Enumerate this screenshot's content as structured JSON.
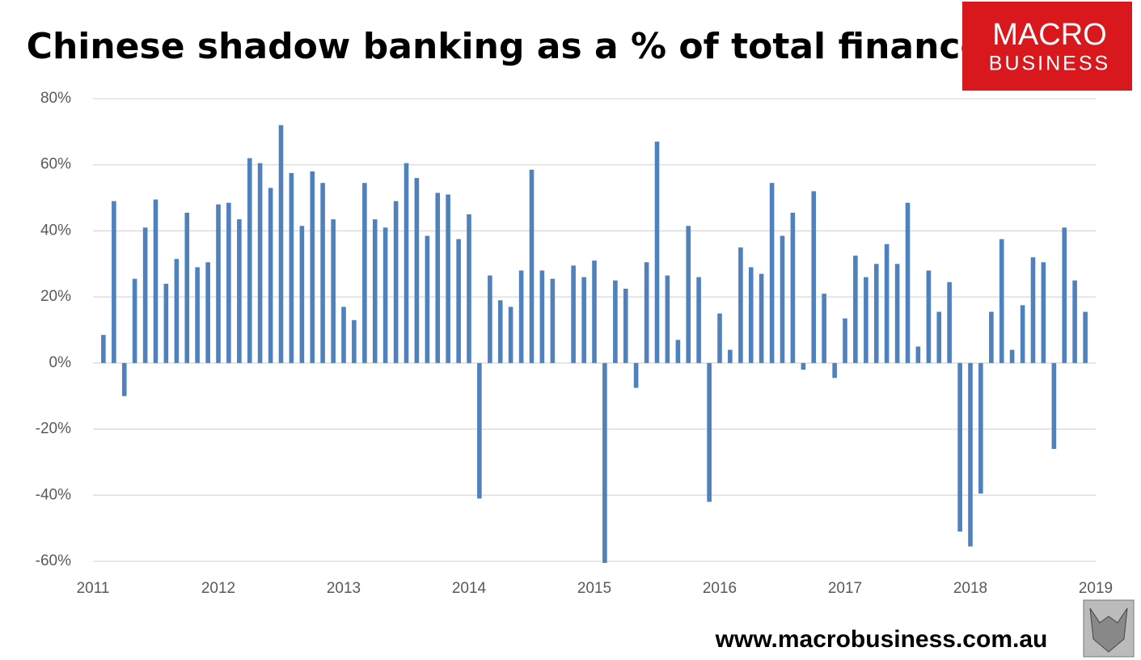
{
  "chart_data": {
    "type": "bar",
    "title": "Chinese shadow banking as a % of total finance",
    "logo": {
      "line1": "MACRO",
      "line2": "BUSINESS"
    },
    "footer": "www.macrobusiness.com.au",
    "x": [
      2011.083,
      2011.167,
      2011.25,
      2011.333,
      2011.417,
      2011.5,
      2011.583,
      2011.667,
      2011.75,
      2011.833,
      2011.917,
      2012,
      2012.083,
      2012.167,
      2012.25,
      2012.333,
      2012.417,
      2012.5,
      2012.583,
      2012.667,
      2012.75,
      2012.833,
      2012.917,
      2013,
      2013.083,
      2013.167,
      2013.25,
      2013.333,
      2013.417,
      2013.5,
      2013.583,
      2013.667,
      2013.75,
      2013.833,
      2013.917,
      2014,
      2014.083,
      2014.167,
      2014.25,
      2014.333,
      2014.417,
      2014.5,
      2014.583,
      2014.667,
      2014.75,
      2014.833,
      2014.917,
      2015,
      2015.083,
      2015.167,
      2015.25,
      2015.333,
      2015.417,
      2015.5,
      2015.583,
      2015.667,
      2015.75,
      2015.833,
      2015.917,
      2016,
      2016.083,
      2016.167,
      2016.25,
      2016.333,
      2016.417,
      2016.5,
      2016.583,
      2016.667,
      2016.75,
      2016.833,
      2016.917,
      2017,
      2017.083,
      2017.167,
      2017.25,
      2017.333,
      2017.417,
      2017.5,
      2017.583,
      2017.667,
      2017.75,
      2017.833,
      2017.917,
      2018,
      2018.083,
      2018.167,
      2018.25,
      2018.333,
      2018.417,
      2018.5,
      2018.583,
      2018.667,
      2018.75,
      2018.833,
      2018.917
    ],
    "series": [
      {
        "color": "#4f81bd",
        "values": [
          8.5,
          49,
          -10,
          25.5,
          41,
          49.5,
          24,
          31.5,
          45.5,
          29,
          30.5,
          48,
          48.5,
          43.5,
          62,
          60.5,
          53,
          72,
          57.5,
          41.5,
          58,
          54.5,
          43.5,
          17,
          13,
          54.5,
          43.5,
          41,
          49,
          60.5,
          56,
          38.5,
          51.5,
          51,
          37.5,
          45,
          -41,
          26.5,
          19,
          17,
          28,
          58.5,
          28,
          25.5,
          null,
          29.5,
          26,
          31,
          -60.5,
          25,
          22.5,
          -7.5,
          30.5,
          67,
          26.5,
          7,
          41.5,
          26,
          -42,
          15,
          4,
          35,
          29,
          27,
          54.5,
          38.5,
          45.5,
          -2,
          52,
          21,
          -4.5,
          13.5,
          32.5,
          26,
          30,
          36,
          30,
          48.5,
          5,
          28,
          15.5,
          24.5,
          -51,
          -55.5,
          -39.5,
          15.5,
          37.5,
          4,
          17.5,
          32,
          30.5,
          -26,
          41,
          25,
          15.5
        ]
      }
    ],
    "xlim": [
      2011,
      2019
    ],
    "xticks": [
      2011,
      2012,
      2013,
      2014,
      2015,
      2016,
      2017,
      2018,
      2019
    ],
    "ylim": [
      -60,
      80
    ],
    "yticks": [
      {
        "value": -60,
        "label": "-60%"
      },
      {
        "value": -40,
        "label": "-40%"
      },
      {
        "value": -20,
        "label": "-20%"
      },
      {
        "value": 0,
        "label": "0%"
      },
      {
        "value": 20,
        "label": "20%"
      },
      {
        "value": 40,
        "label": "40%"
      },
      {
        "value": 60,
        "label": "60%"
      },
      {
        "value": 80,
        "label": "80%"
      }
    ],
    "grid": true
  }
}
